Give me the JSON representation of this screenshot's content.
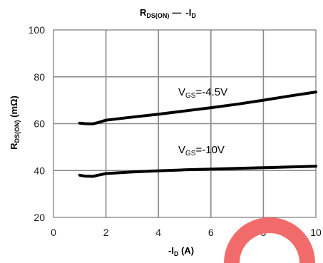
{
  "chart_data": {
    "type": "line",
    "title": {
      "main": "R",
      "sub": "DS(ON)",
      "dash": "—",
      "rest": "-I",
      "rest_sub": "D"
    },
    "xlabel": {
      "main": "-I",
      "sub": "D",
      "rest": " (A)"
    },
    "ylabel": {
      "main": "R",
      "sub": "DS(ON)",
      "rest": " (mΩ)"
    },
    "xlim": [
      0,
      10
    ],
    "ylim": [
      20,
      100
    ],
    "xticks": [
      0,
      2,
      4,
      6,
      8,
      10
    ],
    "yticks": [
      20,
      40,
      60,
      80,
      100
    ],
    "grid": true,
    "series": [
      {
        "label_main": "V",
        "label_sub": "GS",
        "label_rest": "=-4.5V",
        "color": "#000000",
        "points": [
          [
            1.0,
            60.2
          ],
          [
            1.2,
            60.0
          ],
          [
            1.5,
            59.9
          ],
          [
            1.7,
            60.5
          ],
          [
            2.0,
            61.5
          ],
          [
            3.0,
            62.8
          ],
          [
            4.0,
            64.0
          ],
          [
            5.0,
            65.4
          ],
          [
            6.0,
            66.8
          ],
          [
            7.0,
            68.3
          ],
          [
            8.0,
            70.0
          ],
          [
            9.0,
            71.8
          ],
          [
            10.0,
            73.5
          ]
        ]
      },
      {
        "label_main": "V",
        "label_sub": "GS",
        "label_rest": "=-10V",
        "color": "#000000",
        "points": [
          [
            1.0,
            38.0
          ],
          [
            1.2,
            37.6
          ],
          [
            1.5,
            37.5
          ],
          [
            1.7,
            38.0
          ],
          [
            2.0,
            38.7
          ],
          [
            3.0,
            39.4
          ],
          [
            4.0,
            39.9
          ],
          [
            5.0,
            40.3
          ],
          [
            6.0,
            40.6
          ],
          [
            7.0,
            40.9
          ],
          [
            8.0,
            41.2
          ],
          [
            9.0,
            41.5
          ],
          [
            10.0,
            41.8
          ]
        ]
      }
    ]
  },
  "decor": {
    "arc_color": "#f26b6b"
  }
}
